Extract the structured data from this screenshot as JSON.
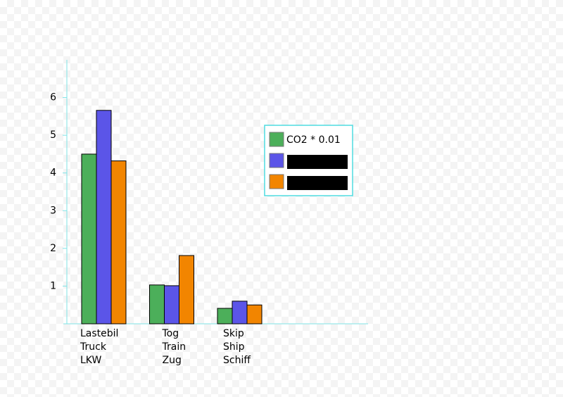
{
  "chart_data": {
    "type": "bar",
    "categories": [
      [
        "Lastebil",
        "Truck",
        "LKW"
      ],
      [
        "Tog",
        "Train",
        "Zug"
      ],
      [
        "Skip",
        "Ship",
        "Schiff"
      ]
    ],
    "series": [
      {
        "name": "CO2 * 0.01",
        "color": "#4caf5a",
        "values": [
          4.5,
          1.03,
          0.41
        ]
      },
      {
        "color": "#5b55e8",
        "values": [
          5.66,
          1.01,
          0.6
        ]
      },
      {
        "color": "#f28500",
        "values": [
          4.32,
          1.81,
          0.5
        ]
      }
    ],
    "ylim": [
      0,
      7
    ],
    "yticks": [
      1,
      2,
      3,
      4,
      5,
      6
    ]
  }
}
